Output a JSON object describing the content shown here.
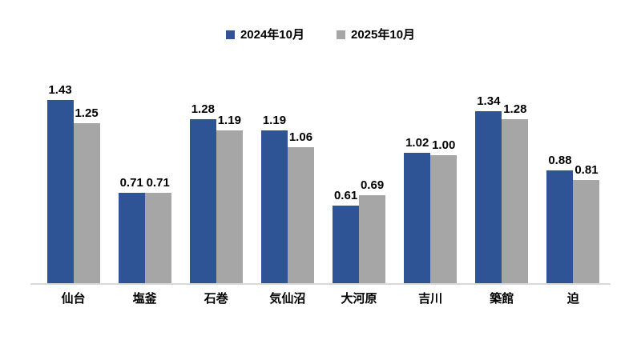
{
  "chart_data": {
    "type": "bar",
    "title": "",
    "xlabel": "",
    "ylabel": "",
    "categories": [
      "仙台",
      "塩釜",
      "石巻",
      "気仙沼",
      "大河原",
      "吉川",
      "築館",
      "迫"
    ],
    "series": [
      {
        "name": "2024年10月",
        "color": "#2F5496",
        "values": [
          1.43,
          0.71,
          1.28,
          1.19,
          0.61,
          1.02,
          1.34,
          0.88
        ]
      },
      {
        "name": "2025年10月",
        "color": "#A6A6A6",
        "values": [
          1.25,
          0.71,
          1.19,
          1.06,
          0.69,
          1.0,
          1.28,
          0.81
        ]
      }
    ],
    "value_label_decimals": 2,
    "ylim": [
      0,
      1.8
    ],
    "grid": false,
    "y_axis_visible": false,
    "legend_position": "top-center",
    "value_labels_shown": true,
    "colors": {
      "axis_line": "#D9D9D9",
      "label_text": "#000000",
      "background": "#FFFFFF"
    }
  }
}
